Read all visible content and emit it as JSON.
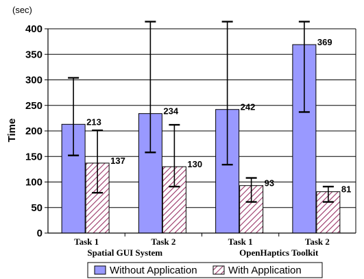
{
  "chart_data": {
    "type": "bar",
    "unit_label": "(sec)",
    "ylabel": "Time",
    "ylim": [
      0,
      400
    ],
    "y_ticks": [
      "0",
      "50",
      "100",
      "150",
      "200",
      "250",
      "300",
      "350",
      "400"
    ],
    "grid": "horizontal",
    "legend_position": "bottom",
    "categories": [
      "Task 1",
      "Task 2",
      "Task 1",
      "Task 2"
    ],
    "groups": [
      {
        "label": "Spatial GUI System",
        "categories": [
          0,
          1
        ]
      },
      {
        "label": "OpenHaptics Toolkit",
        "categories": [
          2,
          3
        ]
      }
    ],
    "series": [
      {
        "name": "Without Application",
        "color": "#9999ff",
        "pattern": "solid",
        "values": [
          213,
          234,
          242,
          369
        ],
        "labels": [
          "213",
          "234",
          "242",
          "369"
        ],
        "error_low": [
          152,
          158,
          134,
          237
        ],
        "error_high": [
          304,
          414,
          414,
          414
        ]
      },
      {
        "name": "With Application",
        "color": "#993366",
        "pattern": "diagonal-hatch",
        "values": [
          137,
          130,
          93,
          81
        ],
        "labels": [
          "137",
          "130",
          "93",
          "81"
        ],
        "error_low": [
          79,
          91,
          61,
          61
        ],
        "error_high": [
          201,
          212,
          108,
          91
        ]
      }
    ]
  }
}
